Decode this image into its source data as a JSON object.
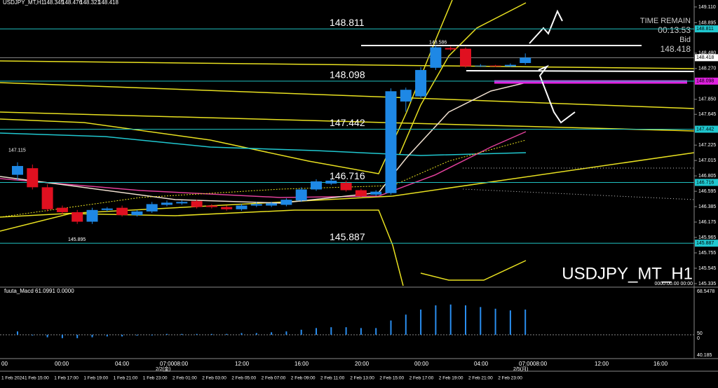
{
  "header": "USDJPY_MT,H1",
  "chart_data": {
    "type": "candlestick",
    "open": [
      146.82,
      146.91,
      146.65,
      146.37,
      146.31,
      146.18,
      146.34,
      146.37,
      146.27,
      146.32,
      146.41,
      146.43,
      146.46,
      146.4,
      146.38,
      146.35,
      146.4,
      146.4,
      146.41,
      146.47,
      146.62,
      146.7,
      146.71,
      146.61,
      146.55,
      146.57,
      147.82,
      147.89,
      148.28,
      148.55,
      148.54,
      148.31,
      148.31,
      148.3,
      148.345
    ],
    "high": [
      146.99,
      146.96,
      146.69,
      146.4,
      146.34,
      146.37,
      146.38,
      146.4,
      146.34,
      146.45,
      146.47,
      146.47,
      146.48,
      146.42,
      146.4,
      146.42,
      146.45,
      146.45,
      146.5,
      146.65,
      146.76,
      146.76,
      146.74,
      146.63,
      146.61,
      148.0,
      148.01,
      148.29,
      148.586,
      148.57,
      148.56,
      148.33,
      148.32,
      148.34,
      148.476
    ],
    "low": [
      146.74,
      146.62,
      146.32,
      146.28,
      146.15,
      146.15,
      146.32,
      146.25,
      146.25,
      146.3,
      146.39,
      146.41,
      146.36,
      146.36,
      146.33,
      146.33,
      146.38,
      146.38,
      146.39,
      146.45,
      146.6,
      146.68,
      146.59,
      146.51,
      146.53,
      146.55,
      147.68,
      147.86,
      148.25,
      148.51,
      148.28,
      148.29,
      148.29,
      148.29,
      148.321
    ],
    "close": [
      146.94,
      146.65,
      146.35,
      146.31,
      146.18,
      146.34,
      146.36,
      146.27,
      146.32,
      146.42,
      146.44,
      146.45,
      146.38,
      146.38,
      146.35,
      146.4,
      146.42,
      146.43,
      146.48,
      146.62,
      146.73,
      146.74,
      146.61,
      146.53,
      146.59,
      147.96,
      147.98,
      148.25,
      148.56,
      148.53,
      148.3,
      148.31,
      148.3,
      148.32,
      148.418
    ],
    "up_color": "#1e88e5",
    "down_color": "#e01020",
    "ylim": [
      145.287,
      149.205
    ],
    "yticks": [
      {
        "value": 149.11,
        "label": "149.110"
      },
      148.895,
      {
        "value": 148.48,
        "label": "148.480"
      },
      {
        "value": 148.27,
        "label": "148.270"
      },
      {
        "value": 147.85,
        "label": "147.850"
      },
      147.645,
      147.225,
      147.015,
      146.805,
      146.595,
      146.385,
      146.175,
      145.965,
      145.755,
      145.545,
      145.335
    ],
    "levels": [
      148.811,
      148.098,
      147.442,
      146.716,
      145.887
    ],
    "price_labels": [
      148.586,
      147.115,
      145.895
    ],
    "time_remain_label": "TIME REMAIN",
    "time_remain": "00:13:53",
    "bid_label": "Bid",
    "symbol_label": "USDJPY_MT_H1",
    "date_label": "0000.00.00 00:00",
    "macd": {
      "title": "fuuta_Macd 61.0991 0.0000",
      "axis_labels": [
        "68.5478",
        "50",
        "0",
        "40.185"
      ],
      "ylim": [
        -10,
        40
      ],
      "values": [
        4,
        0,
        -3,
        -4,
        -4,
        -3,
        -2,
        -2,
        -1,
        0,
        1,
        1,
        1,
        1,
        1,
        2,
        2,
        3,
        4,
        6,
        8,
        9,
        9,
        8,
        8,
        17,
        24,
        30,
        35,
        36,
        35,
        33,
        31,
        29,
        30
      ]
    },
    "time_labels": [
      "00",
      "00:00",
      "04:00",
      "07:00",
      "08:00",
      "12:00",
      "16:00",
      "20:00",
      "00:00",
      "04:00",
      "07:00",
      "08:00",
      "12:00",
      "16:00"
    ],
    "date_marks": [
      "2/2(金)",
      "2/5(月)"
    ],
    "bar_times": [
      "1 Feb 2024",
      "1 Feb 15:00",
      "1 Feb 17:00",
      "1 Feb 19:00",
      "1 Feb 21:00",
      "1 Feb 23:00",
      "2 Feb 01:00",
      "2 Feb 03:00",
      "2 Feb 05:00",
      "2 Feb 07:00",
      "2 Feb 09:00",
      "2 Feb 11:00",
      "2 Feb 13:00",
      "2 Feb 15:00",
      "2 Feb 17:00",
      "2 Feb 19:00",
      "2 Feb 21:00",
      "2 Feb 23:00"
    ]
  }
}
